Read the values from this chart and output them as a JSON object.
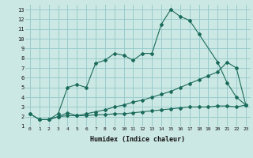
{
  "xlabel": "Humidex (Indice chaleur)",
  "bg_color": "#cce8e4",
  "grid_color": "#99cccc",
  "line_color": "#1a6b5a",
  "xlim": [
    -0.5,
    23.5
  ],
  "ylim": [
    1,
    13.5
  ],
  "xticks": [
    0,
    1,
    2,
    3,
    4,
    5,
    6,
    7,
    8,
    9,
    10,
    11,
    12,
    13,
    14,
    15,
    16,
    17,
    18,
    19,
    20,
    21,
    22,
    23
  ],
  "yticks": [
    1,
    2,
    3,
    4,
    5,
    6,
    7,
    8,
    9,
    10,
    11,
    12,
    13
  ],
  "series": [
    {
      "x": [
        1,
        2,
        3,
        4,
        5,
        6,
        7,
        8,
        9,
        10,
        11,
        12,
        13,
        14,
        15,
        16,
        17,
        18,
        20,
        21,
        22,
        23
      ],
      "y": [
        1.7,
        1.7,
        2.3,
        5.0,
        5.3,
        5.0,
        7.5,
        7.8,
        8.5,
        8.3,
        7.8,
        8.5,
        8.5,
        11.5,
        13.0,
        12.3,
        11.9,
        10.5,
        7.6,
        5.5,
        4.0,
        3.2
      ]
    },
    {
      "x": [
        0,
        1,
        2,
        3,
        4,
        5,
        6,
        7,
        8,
        9,
        10,
        11,
        12,
        13,
        14,
        15,
        16,
        17,
        18,
        19,
        20,
        21,
        22,
        23
      ],
      "y": [
        2.3,
        1.7,
        1.7,
        2.0,
        2.4,
        2.1,
        2.3,
        2.5,
        2.7,
        3.0,
        3.2,
        3.5,
        3.7,
        4.0,
        4.3,
        4.6,
        5.0,
        5.4,
        5.8,
        6.2,
        6.6,
        7.6,
        7.0,
        3.2
      ]
    },
    {
      "x": [
        0,
        1,
        2,
        3,
        4,
        5,
        6,
        7,
        8,
        9,
        10,
        11,
        12,
        13,
        14,
        15,
        16,
        17,
        18,
        19,
        20,
        21,
        22,
        23
      ],
      "y": [
        2.3,
        1.7,
        1.7,
        2.0,
        2.1,
        2.1,
        2.1,
        2.2,
        2.2,
        2.3,
        2.3,
        2.4,
        2.5,
        2.6,
        2.7,
        2.8,
        2.9,
        3.0,
        3.0,
        3.0,
        3.1,
        3.1,
        3.0,
        3.2
      ]
    }
  ]
}
